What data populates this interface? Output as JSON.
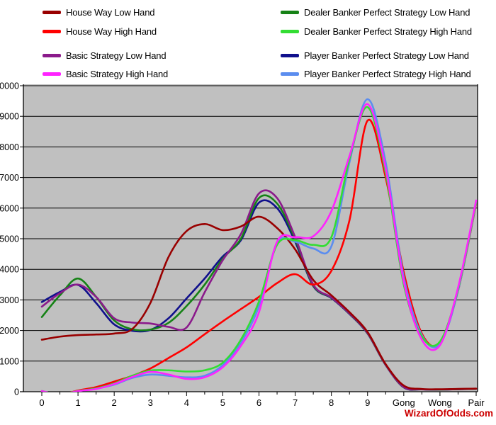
{
  "watermark": {
    "text": "WizardOfOdds.com",
    "color": "#cc0000"
  },
  "chart_data": {
    "type": "line",
    "title": "",
    "xlabel": "",
    "ylabel": "",
    "x_tick_labels": [
      "0",
      "1",
      "2",
      "3",
      "4",
      "5",
      "6",
      "7",
      "8",
      "9",
      "Gong",
      "Wong",
      "Pair"
    ],
    "x_step": 0.5,
    "ylim": [
      0,
      10000
    ],
    "ytick_step": 1000,
    "grid": "horizontal",
    "plot_bg": "#c0c0c0",
    "legend_position": "top",
    "legend_columns": {
      "left": [
        0,
        1,
        4,
        5
      ],
      "right": [
        2,
        3,
        6,
        7
      ]
    },
    "draw_order": [
      6,
      2,
      4,
      0,
      1,
      7,
      3,
      5
    ],
    "series": [
      {
        "name": "House Way Low Hand",
        "color": "#990000",
        "values": [
          1700,
          1800,
          1850,
          1870,
          1900,
          2050,
          2900,
          4400,
          5250,
          5480,
          5280,
          5400,
          5720,
          5350,
          4650,
          3650,
          3150,
          2600,
          1950,
          900,
          200,
          90,
          80,
          90,
          100
        ]
      },
      {
        "name": "House Way High Hand",
        "color": "#ff0000",
        "values": [
          20,
          0,
          40,
          150,
          330,
          520,
          760,
          1100,
          1450,
          1880,
          2300,
          2700,
          3100,
          3550,
          3840,
          3500,
          3950,
          5600,
          8860,
          7000,
          3900,
          1900,
          1590,
          3300,
          6150
        ]
      },
      {
        "name": "Dealer Banker Perfect Strategy Low Hand",
        "color": "#168216",
        "values": [
          2440,
          3150,
          3700,
          3100,
          2330,
          2040,
          2030,
          2250,
          2800,
          3500,
          4350,
          5000,
          6330,
          6150,
          4980,
          3470,
          3070,
          2550,
          1910,
          875,
          145,
          78,
          72,
          82,
          98
        ]
      },
      {
        "name": "Dealer Banker Perfect Strategy High Hand",
        "color": "#33dd33",
        "values": [
          20,
          0,
          25,
          110,
          270,
          520,
          690,
          700,
          660,
          700,
          950,
          1700,
          2950,
          4800,
          4950,
          4800,
          5050,
          7600,
          9300,
          7150,
          3500,
          1800,
          1640,
          3350,
          6200
        ]
      },
      {
        "name": "Basic Strategy Low Hand",
        "color": "#8b1a8b",
        "values": [
          2780,
          3220,
          3500,
          3100,
          2400,
          2260,
          2230,
          2120,
          2100,
          3250,
          4300,
          5150,
          6480,
          6330,
          5050,
          3500,
          3080,
          2560,
          1920,
          880,
          150,
          80,
          75,
          85,
          100
        ]
      },
      {
        "name": "Basic Strategy High Hand",
        "color": "#ff22ff",
        "values": [
          20,
          0,
          20,
          90,
          250,
          480,
          650,
          560,
          420,
          470,
          800,
          1500,
          2600,
          4900,
          5050,
          5080,
          5900,
          7700,
          9400,
          7300,
          3600,
          1700,
          1520,
          3400,
          6250
        ]
      },
      {
        "name": "Player Banker Perfect Strategy Low Hand",
        "color": "#10108c",
        "values": [
          2930,
          3260,
          3490,
          2900,
          2200,
          1990,
          2020,
          2400,
          3050,
          3700,
          4420,
          4950,
          6180,
          6000,
          4900,
          3450,
          3060,
          2540,
          1900,
          870,
          140,
          75,
          70,
          80,
          95
        ]
      },
      {
        "name": "Player Banker Perfect Strategy High Hand",
        "color": "#5b8def",
        "values": [
          20,
          0,
          20,
          100,
          230,
          450,
          560,
          520,
          470,
          520,
          870,
          1600,
          2800,
          4850,
          4900,
          4680,
          4750,
          7500,
          9560,
          7500,
          3750,
          1850,
          1560,
          3300,
          6180
        ]
      }
    ]
  }
}
